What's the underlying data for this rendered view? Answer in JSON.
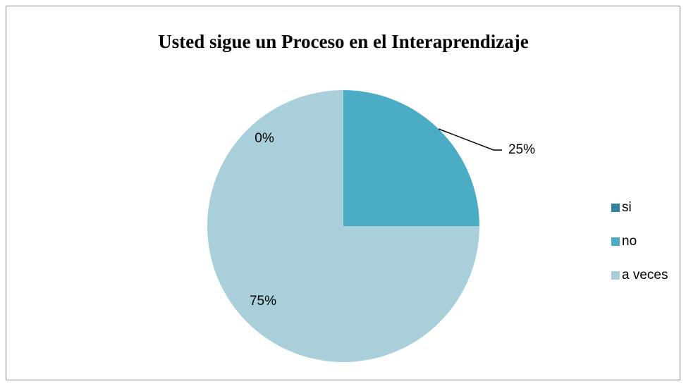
{
  "chart_data": {
    "type": "pie",
    "title": "Usted sigue un Proceso en el Interaprendizaje",
    "categories": [
      "si",
      "no",
      "a veces"
    ],
    "values": [
      0,
      25,
      75
    ],
    "value_labels": [
      "0%",
      "25%",
      "75%"
    ],
    "colors": [
      "#31849b",
      "#4bacc6",
      "#a9cfdb"
    ],
    "legend": "right"
  }
}
